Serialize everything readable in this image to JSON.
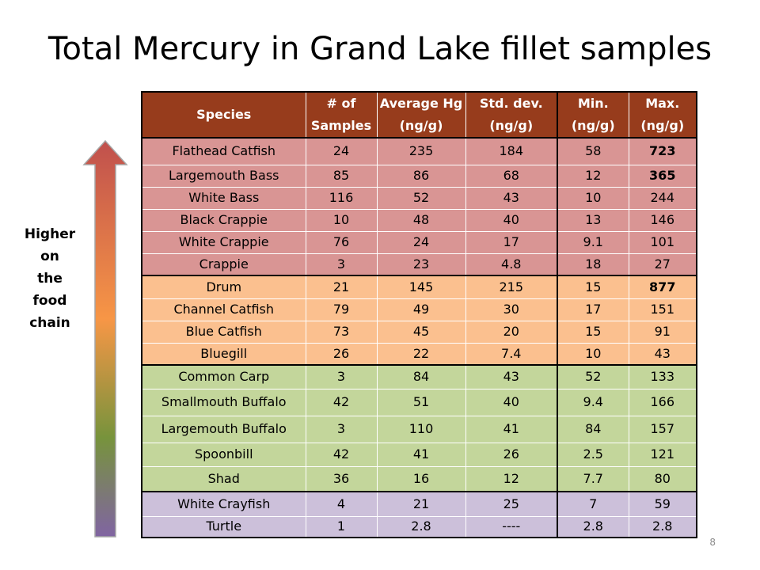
{
  "slide": {
    "title": "Total Mercury in Grand Lake fillet samples",
    "page_number": "8",
    "side_label": [
      "Higher",
      "on",
      "the",
      "food",
      "chain"
    ],
    "arrow_colors": [
      "#c0504d",
      "#f79646",
      "#77933c",
      "#8064a2"
    ]
  },
  "table": {
    "headers": [
      [
        "Species"
      ],
      [
        "# of",
        "Samples"
      ],
      [
        "Average Hg",
        "(ng/g)"
      ],
      [
        "Std. dev.",
        "(ng/g)"
      ],
      [
        "Min.",
        "(ng/g)"
      ],
      [
        "Max.",
        "(ng/g)"
      ]
    ],
    "group_colors": {
      "red": "#d99594",
      "orange": "#fbc08f",
      "green": "#c3d69b",
      "purple": "#ccc0da",
      "header": "#973c1c"
    },
    "rows": [
      {
        "species": "Flathead Catfish",
        "samples": "24",
        "avg": "235",
        "std": "184",
        "min": "58",
        "max": "723",
        "max_bold": true
      },
      {
        "species": "Largemouth Bass",
        "samples": "85",
        "avg": "86",
        "std": "68",
        "min": "12",
        "max": "365",
        "max_bold": true
      },
      {
        "species": "White Bass",
        "samples": "116",
        "avg": "52",
        "std": "43",
        "min": "10",
        "max": "244"
      },
      {
        "species": "Black Crappie",
        "samples": "10",
        "avg": "48",
        "std": "40",
        "min": "13",
        "max": "146"
      },
      {
        "species": "White Crappie",
        "samples": "76",
        "avg": "24",
        "std": "17",
        "min": "9.1",
        "max": "101"
      },
      {
        "species": "Crappie",
        "samples": "3",
        "avg": "23",
        "std": "4.8",
        "min": "18",
        "max": "27"
      },
      {
        "species": "Drum",
        "samples": "21",
        "avg": "145",
        "std": "215",
        "min": "15",
        "max": "877",
        "max_bold": true
      },
      {
        "species": "Channel Catfish",
        "samples": "79",
        "avg": "49",
        "std": "30",
        "min": "17",
        "max": "151"
      },
      {
        "species": "Blue Catfish",
        "samples": "73",
        "avg": "45",
        "std": "20",
        "min": "15",
        "max": "91"
      },
      {
        "species": "Bluegill",
        "samples": "26",
        "avg": "22",
        "std": "7.4",
        "min": "10",
        "max": "43"
      },
      {
        "species": "Common Carp",
        "samples": "3",
        "avg": "84",
        "std": "43",
        "min": "52",
        "max": "133"
      },
      {
        "species": "Smallmouth Buffalo",
        "samples": "42",
        "avg": "51",
        "std": "40",
        "min": "9.4",
        "max": "166"
      },
      {
        "species": "Largemouth Buffalo",
        "samples": "3",
        "avg": "110",
        "std": "41",
        "min": "84",
        "max": "157"
      },
      {
        "species": "Spoonbill",
        "samples": "42",
        "avg": "41",
        "std": "26",
        "min": "2.5",
        "max": "121"
      },
      {
        "species": "Shad",
        "samples": "36",
        "avg": "16",
        "std": "12",
        "min": "7.7",
        "max": "80"
      },
      {
        "species": "White Crayfish",
        "samples": "4",
        "avg": "21",
        "std": "25",
        "min": "7",
        "max": "59"
      },
      {
        "species": "Turtle",
        "samples": "1",
        "avg": "2.8",
        "std": "----",
        "min": "2.8",
        "max": "2.8"
      }
    ]
  }
}
